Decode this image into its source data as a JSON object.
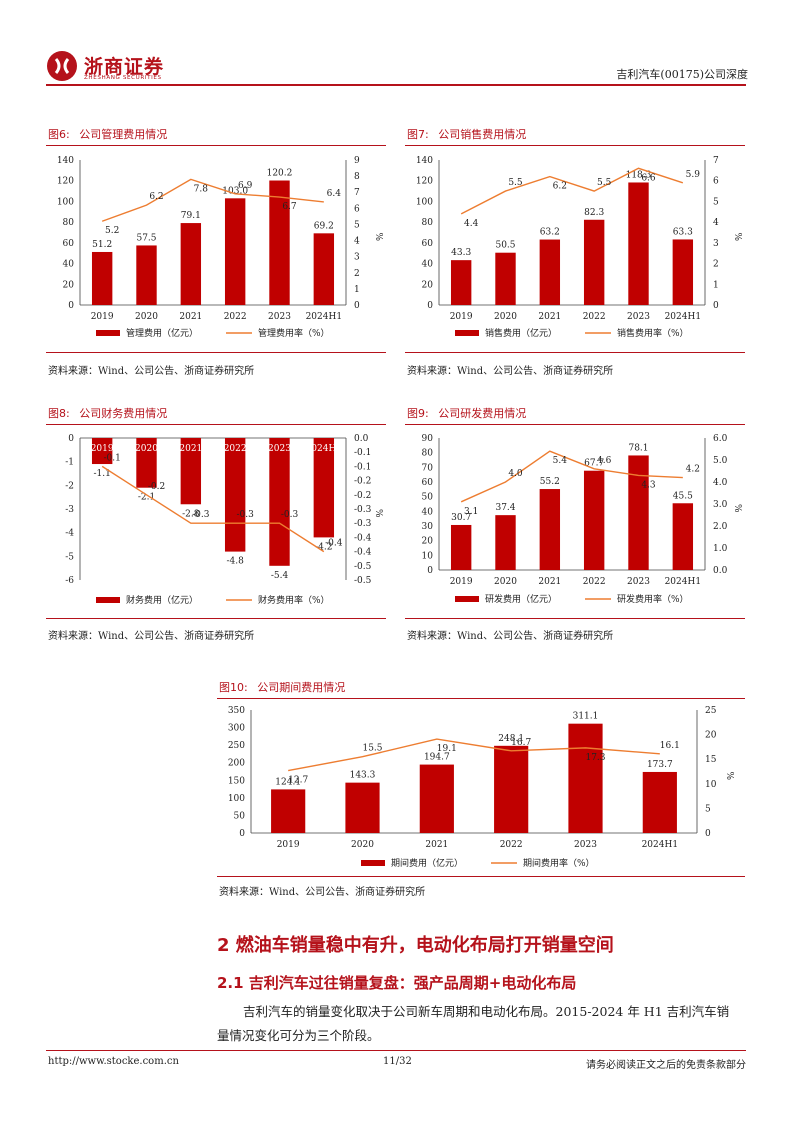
{
  "header": {
    "logo_text": "浙商证券",
    "logo_sub": "ZHESHANG SECURITIES",
    "right_text": "吉利汽车(00175)公司深度"
  },
  "colors": {
    "bar": "#c00000",
    "line": "#ed7d31",
    "brand": "#b5121b"
  },
  "figures": [
    {
      "label": "图6:",
      "title": "公司管理费用情况",
      "source": "资料来源：Wind、公司公告、浙商证券研究所",
      "chart_data": {
        "type": "bar-line",
        "categories": [
          "2019",
          "2020",
          "2021",
          "2022",
          "2023",
          "2024H1"
        ],
        "bar_series": {
          "name": "管理费用（亿元）",
          "values": [
            51.2,
            57.5,
            79.1,
            103.0,
            120.2,
            69.2
          ],
          "labels": [
            "51.2",
            "57.5",
            "79.1",
            "103.0",
            "120.2",
            "69.2"
          ]
        },
        "line_series": {
          "name": "管理费用率（%）",
          "values": [
            5.2,
            6.2,
            7.8,
            6.9,
            6.7,
            6.4
          ],
          "labels": [
            "5.2",
            "6.2",
            "7.8",
            "6.9",
            "6.7",
            "6.4"
          ]
        },
        "y_left": {
          "min": 0,
          "max": 140,
          "step": 20,
          "ticks": [
            "0",
            "20",
            "40",
            "60",
            "80",
            "100",
            "120",
            "140"
          ]
        },
        "y_right": {
          "min": 0,
          "max": 9,
          "step": 1,
          "ticks": [
            "0",
            "1",
            "2",
            "3",
            "4",
            "5",
            "6",
            "7",
            "8",
            "9"
          ],
          "label": "%"
        }
      }
    },
    {
      "label": "图7:",
      "title": "公司销售费用情况",
      "source": "资料来源：Wind、公司公告、浙商证券研究所",
      "chart_data": {
        "type": "bar-line",
        "categories": [
          "2019",
          "2020",
          "2021",
          "2022",
          "2023",
          "2024H1"
        ],
        "bar_series": {
          "name": "销售费用（亿元）",
          "values": [
            43.3,
            50.5,
            63.2,
            82.3,
            118.3,
            63.3
          ],
          "labels": [
            "43.3",
            "50.5",
            "63.2",
            "82.3",
            "118.3",
            "63.3"
          ]
        },
        "line_series": {
          "name": "销售费用率（%）",
          "values": [
            4.4,
            5.5,
            6.2,
            5.5,
            6.6,
            5.9
          ],
          "labels": [
            "4.4",
            "5.5",
            "6.2",
            "5.5",
            "6.6",
            "5.9"
          ]
        },
        "y_left": {
          "min": 0,
          "max": 140,
          "step": 20,
          "ticks": [
            "0",
            "20",
            "40",
            "60",
            "80",
            "100",
            "120",
            "140"
          ]
        },
        "y_right": {
          "min": 0,
          "max": 7,
          "step": 1,
          "ticks": [
            "0",
            "1",
            "2",
            "3",
            "4",
            "5",
            "6",
            "7"
          ],
          "label": "%"
        }
      }
    },
    {
      "label": "图8:",
      "title": "公司财务费用情况",
      "source": "资料来源：Wind、公司公告、浙商证券研究所",
      "chart_data": {
        "type": "bar-line",
        "categories": [
          "2019",
          "2020",
          "2021",
          "2022",
          "2023",
          "2024H1"
        ],
        "bar_series": {
          "name": "财务费用（亿元）",
          "values": [
            -1.1,
            -2.1,
            -2.8,
            -4.8,
            -5.4,
            -4.2
          ],
          "labels": [
            "-1.1",
            "-2.1",
            "-2.8",
            "-4.8",
            "-5.4",
            "-4.2"
          ]
        },
        "line_series": {
          "name": "财务费用率（%）",
          "values": [
            -0.1,
            -0.2,
            -0.3,
            -0.3,
            -0.3,
            -0.4
          ],
          "labels": [
            "-0.1",
            "-0.2",
            "-0.3",
            "-0.3",
            "-0.3",
            "-0.4"
          ]
        },
        "y_left": {
          "min": -6,
          "max": 0,
          "step": 1,
          "ticks": [
            "-6",
            "-5",
            "-4",
            "-3",
            "-2",
            "-1",
            "0"
          ]
        },
        "y_right": {
          "min": -0.5,
          "max": 0,
          "step": 0.05,
          "ticks": [
            "-0.5",
            "-0.5",
            "-0.4",
            "-0.4",
            "-0.3",
            "-0.3",
            "-0.2",
            "-0.2",
            "-0.1",
            "-0.1",
            "0.0"
          ],
          "label": "%"
        }
      }
    },
    {
      "label": "图9:",
      "title": "公司研发费用情况",
      "source": "资料来源：Wind、公司公告、浙商证券研究所",
      "chart_data": {
        "type": "bar-line",
        "categories": [
          "2019",
          "2020",
          "2021",
          "2022",
          "2023",
          "2024H1"
        ],
        "bar_series": {
          "name": "研发费用（亿元）",
          "values": [
            30.7,
            37.4,
            55.2,
            67.7,
            78.1,
            45.5
          ],
          "labels": [
            "30.7",
            "37.4",
            "55.2",
            "67.7",
            "78.1",
            "45.5"
          ]
        },
        "line_series": {
          "name": "研发费用率（%）",
          "values": [
            3.1,
            4.0,
            5.4,
            4.6,
            4.3,
            4.2
          ],
          "labels": [
            "3.1",
            "4.0",
            "5.4",
            "4.6",
            "4.3",
            "4.2"
          ]
        },
        "y_left": {
          "min": 0,
          "max": 90,
          "step": 10,
          "ticks": [
            "0",
            "10",
            "20",
            "30",
            "40",
            "50",
            "60",
            "70",
            "80",
            "90"
          ]
        },
        "y_right": {
          "min": 0,
          "max": 6,
          "step": 1,
          "ticks": [
            "0.0",
            "1.0",
            "2.0",
            "3.0",
            "4.0",
            "5.0",
            "6.0"
          ],
          "label": "%"
        }
      }
    },
    {
      "label": "图10:",
      "title": "公司期间费用情况",
      "source": "资料来源：Wind、公司公告、浙商证券研究所",
      "chart_data": {
        "type": "bar-line",
        "categories": [
          "2019",
          "2020",
          "2021",
          "2022",
          "2023",
          "2024H1"
        ],
        "bar_series": {
          "name": "期间费用（亿元）",
          "values": [
            124.1,
            143.3,
            194.7,
            248.1,
            311.1,
            173.7
          ],
          "labels": [
            "124.1",
            "143.3",
            "194.7",
            "248.1",
            "311.1",
            "173.7"
          ]
        },
        "line_series": {
          "name": "期间费用率（%）",
          "values": [
            12.7,
            15.5,
            19.1,
            16.7,
            17.3,
            16.1
          ],
          "labels": [
            "12.7",
            "15.5",
            "19.1",
            "16.7",
            "17.3",
            "16.1"
          ]
        },
        "y_left": {
          "min": 0,
          "max": 350,
          "step": 50,
          "ticks": [
            "0",
            "50",
            "100",
            "150",
            "200",
            "250",
            "300",
            "350"
          ]
        },
        "y_right": {
          "min": 0,
          "max": 25,
          "step": 5,
          "ticks": [
            "0",
            "5",
            "10",
            "15",
            "20",
            "25"
          ],
          "label": "%"
        }
      }
    }
  ],
  "section": {
    "h1": "2 燃油车销量稳中有升，电动化布局打开销量空间",
    "h2": "2.1 吉利汽车过往销量复盘：强产品周期+电动化布局",
    "para_line1": "吉利汽车的销量变化取决于公司新车周期和电动化布局。2015-2024 年 H1 吉利汽车销",
    "para_line2": "量情况变化可分为三个阶段。"
  },
  "footer": {
    "url": "http://www.stocke.com.cn",
    "page": "11/32",
    "disclaimer": "请务必阅读正文之后的免责条款部分"
  }
}
